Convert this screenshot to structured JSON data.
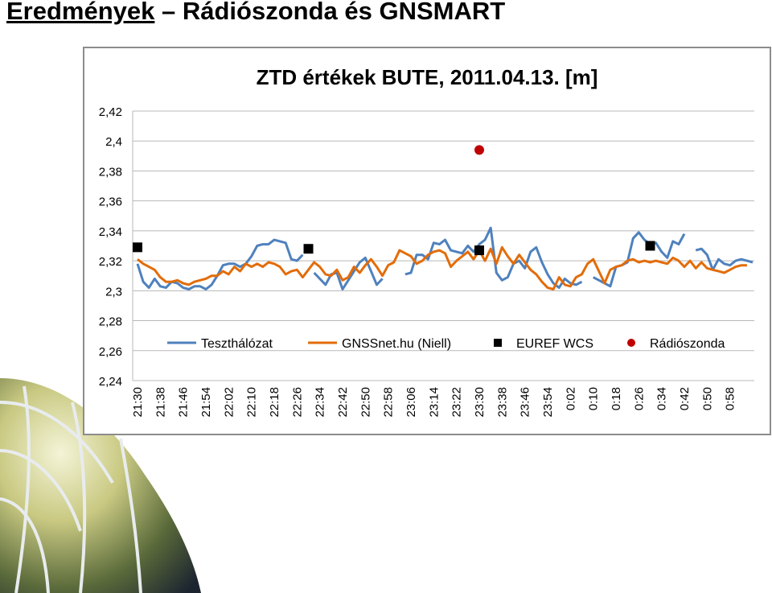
{
  "slide": {
    "title_underlined": "Eredmények",
    "title_rest": " – Rádiószonda és GNSMART"
  },
  "chart_data": {
    "type": "line",
    "title": "ZTD értékek BUTE, 2011.04.13. [m]",
    "xlabel": "",
    "ylabel": "",
    "ylim": [
      2.24,
      2.42
    ],
    "yticks": [
      2.24,
      2.26,
      2.28,
      2.3,
      2.32,
      2.34,
      2.36,
      2.38,
      2.4,
      2.42
    ],
    "ytick_labels": [
      "2,24",
      "2,26",
      "2,28",
      "2,3",
      "2,32",
      "2,34",
      "2,36",
      "2,38",
      "2,4",
      "2,42"
    ],
    "xtick_labels": [
      "21:30",
      "21:38",
      "21:46",
      "21:54",
      "22:02",
      "22:10",
      "22:18",
      "22:26",
      "22:34",
      "22:42",
      "22:50",
      "22:58",
      "23:06",
      "23:14",
      "23:22",
      "23:30",
      "23:38",
      "23:46",
      "23:54",
      "0:02",
      "0:10",
      "0:18",
      "0:26",
      "0:34",
      "0:42",
      "0:50",
      "0:58"
    ],
    "x_step_minutes": 2,
    "grid": true,
    "legend_position": "bottom",
    "series": [
      {
        "name": "Teszthálózat",
        "kind": "line",
        "color": "#4f81bd",
        "values": [
          2.318,
          2.306,
          2.302,
          2.308,
          2.303,
          2.302,
          2.306,
          2.305,
          2.302,
          2.301,
          2.303,
          2.303,
          2.301,
          2.304,
          2.31,
          2.317,
          2.318,
          2.318,
          2.316,
          2.318,
          2.323,
          2.33,
          2.331,
          2.331,
          2.334,
          2.333,
          2.332,
          2.321,
          2.32,
          2.324,
          null,
          2.312,
          2.308,
          2.304,
          2.311,
          2.312,
          2.301,
          2.307,
          2.313,
          2.319,
          2.322,
          2.313,
          2.304,
          2.308,
          null,
          null,
          null,
          2.311,
          2.312,
          2.324,
          2.324,
          2.321,
          2.332,
          2.331,
          2.334,
          2.327,
          2.326,
          2.325,
          2.33,
          2.326,
          2.331,
          2.334,
          2.342,
          2.312,
          2.307,
          2.309,
          2.318,
          2.32,
          2.315,
          2.326,
          2.329,
          2.319,
          2.311,
          2.305,
          2.302,
          2.308,
          2.305,
          2.304,
          2.306,
          null,
          2.309,
          2.307,
          2.305,
          2.303,
          2.316,
          2.317,
          2.319,
          2.335,
          2.339,
          2.334,
          2.331,
          2.332,
          2.326,
          2.322,
          2.333,
          2.331,
          2.338,
          null,
          2.327,
          2.328,
          2.324,
          2.314,
          2.321,
          2.318,
          2.317,
          2.32,
          2.321,
          2.32,
          2.319
        ],
        "draw_gap_above": 2.325
      },
      {
        "name": "GNSSnet.hu (Niell)",
        "kind": "line",
        "color": "#e36c09",
        "values": [
          2.321,
          2.318,
          2.316,
          2.314,
          2.309,
          2.306,
          2.306,
          2.307,
          2.305,
          2.304,
          2.306,
          2.307,
          2.308,
          2.31,
          2.31,
          2.313,
          2.311,
          2.316,
          2.313,
          2.318,
          2.316,
          2.318,
          2.316,
          2.319,
          2.318,
          2.316,
          2.311,
          2.313,
          2.314,
          2.309,
          2.314,
          2.319,
          2.316,
          2.311,
          2.31,
          2.314,
          2.307,
          2.309,
          2.316,
          2.312,
          2.317,
          2.321,
          2.316,
          2.31,
          2.317,
          2.319,
          2.327,
          2.325,
          2.323,
          2.318,
          2.32,
          2.324,
          2.326,
          2.327,
          2.325,
          2.316,
          2.32,
          2.323,
          2.326,
          2.321,
          2.327,
          2.32,
          2.328,
          2.318,
          2.329,
          2.323,
          2.318,
          2.324,
          2.319,
          2.314,
          2.311,
          2.306,
          2.302,
          2.301,
          2.309,
          2.304,
          2.303,
          2.309,
          2.311,
          2.318,
          2.321,
          2.313,
          2.305,
          2.314,
          2.316,
          2.317,
          2.32,
          2.321,
          2.319,
          2.32,
          2.319,
          2.32,
          2.319,
          2.318,
          2.322,
          2.32,
          2.316,
          2.32,
          2.315,
          2.319,
          2.315,
          2.314,
          2.313,
          2.312,
          2.314,
          2.316,
          2.317,
          2.317
        ]
      },
      {
        "name": "EUREF WCS",
        "kind": "marker-square",
        "color": "#000000",
        "points": [
          [
            0,
            2.329
          ],
          [
            30,
            2.328
          ],
          [
            60,
            2.327
          ],
          [
            90,
            2.33
          ]
        ]
      },
      {
        "name": "Rádiószonda",
        "kind": "marker-circle",
        "color": "#c00000",
        "points": [
          [
            60,
            2.394
          ]
        ]
      }
    ]
  }
}
